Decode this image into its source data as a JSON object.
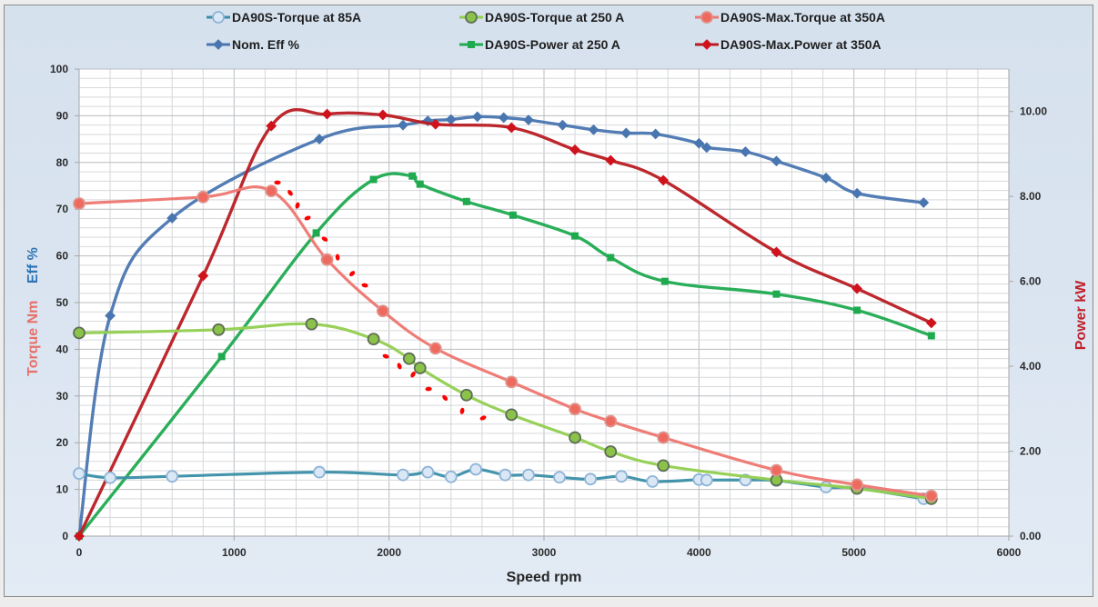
{
  "chart_data": {
    "type": "line",
    "title": "",
    "xlabel": "Speed rpm",
    "ylabel_left_parts": [
      {
        "text": "Torque Nm",
        "color": "#e8706a"
      },
      {
        "text": "Eff %",
        "color": "#2e75b6"
      }
    ],
    "ylabel_right": {
      "text": "Power kW",
      "color": "#c0202a"
    },
    "xlim": [
      0,
      6000
    ],
    "ylim_left": [
      0,
      100
    ],
    "ylim_right": [
      0,
      11
    ],
    "x_ticks": [
      0,
      1000,
      2000,
      3000,
      4000,
      5000,
      6000
    ],
    "x_tick_labels": [
      "0",
      "1000",
      "2000",
      "3000",
      "4000",
      "5000",
      "6000"
    ],
    "y_left_ticks": [
      0,
      10,
      20,
      30,
      40,
      50,
      60,
      70,
      80,
      90,
      100
    ],
    "y_left_tick_labels": [
      "0",
      "10",
      "20",
      "30",
      "40",
      "50",
      "60",
      "70",
      "80",
      "90",
      "100"
    ],
    "y_right_ticks": [
      0,
      2,
      4,
      6,
      8,
      10
    ],
    "y_right_tick_labels": [
      "0.00",
      "2.00",
      "4.00",
      "6.00",
      "8.00",
      "10.00"
    ],
    "grid": {
      "x_minor_step": 200,
      "y_minor_step": 2,
      "on": true
    },
    "legend_position": "top",
    "series": [
      {
        "name": "DA90S-Torque at 85A",
        "axis": "left",
        "marker": "circle-open",
        "line_color": "#3a8fa8",
        "marker_fill": "#dae8f6",
        "marker_edge": "#8fb4d6",
        "x": [
          0,
          200,
          600,
          1550,
          2090,
          2250,
          2400,
          2560,
          2750,
          2900,
          3100,
          3300,
          3500,
          3700,
          4000,
          4050,
          4300,
          4500,
          4820,
          5020,
          5450
        ],
        "y": [
          13.4,
          12.5,
          12.8,
          13.7,
          13.1,
          13.7,
          12.7,
          14.3,
          13.1,
          13.1,
          12.6,
          12.2,
          12.8,
          11.7,
          12.1,
          12.0,
          12.0,
          11.9,
          10.5,
          10.3,
          8.0
        ]
      },
      {
        "name": "DA90S-Torque at 250 A",
        "axis": "left",
        "marker": "circle",
        "line_color": "#92cf50",
        "marker_fill": "#8bc34a",
        "marker_edge": "#5f6e57",
        "x": [
          0,
          900,
          1500,
          1900,
          2130,
          2200,
          2500,
          2790,
          3200,
          3430,
          3770,
          4500,
          5020,
          5500
        ],
        "y": [
          43.5,
          44.2,
          45.4,
          42.2,
          38.0,
          36.0,
          30.2,
          26.0,
          21.1,
          18.1,
          15.1,
          12.0,
          10.2,
          8.0
        ]
      },
      {
        "name": "DA90S-Max.Torque at 350A",
        "axis": "left",
        "marker": "circle",
        "line_color": "#ee7670",
        "marker_fill": "#ee6a5e",
        "marker_edge": "#e0938c",
        "x": [
          0,
          800,
          1240,
          1600,
          1960,
          2300,
          2790,
          3200,
          3430,
          3770,
          4500,
          5020,
          5500
        ],
        "y": [
          71.2,
          72.6,
          73.9,
          59.2,
          48.2,
          40.2,
          33.0,
          27.2,
          24.6,
          21.1,
          14.1,
          11.0,
          8.6
        ]
      },
      {
        "name": "Nom. Eff %",
        "axis": "left",
        "marker": "diamond",
        "line_color": "#4a76b0",
        "marker_fill": "#4a76b0",
        "marker_edge": "#4a76b0",
        "x": [
          0,
          200,
          600,
          1550,
          2090,
          2250,
          2400,
          2570,
          2740,
          2900,
          3120,
          3320,
          3530,
          3720,
          4000,
          4050,
          4300,
          4500,
          4820,
          5020,
          5450
        ],
        "y": [
          0,
          47.2,
          68.1,
          85.0,
          88.0,
          88.9,
          89.2,
          89.8,
          89.6,
          89.1,
          88.0,
          87.0,
          86.3,
          86.1,
          84.1,
          83.2,
          82.3,
          80.3,
          76.7,
          73.4,
          71.4
        ]
      },
      {
        "name": "DA90S-Power at 250 A",
        "axis": "right",
        "marker": "square",
        "line_color": "#1faa50",
        "marker_fill": "#1faa50",
        "marker_edge": "#1faa50",
        "x": [
          0,
          920,
          1530,
          1900,
          2150,
          2200,
          2500,
          2800,
          3200,
          3430,
          3780,
          4500,
          5020,
          5500
        ],
        "y": [
          0,
          4.23,
          7.14,
          8.4,
          8.48,
          8.29,
          7.88,
          7.56,
          7.07,
          6.56,
          6.0,
          5.7,
          5.32,
          4.72
        ]
      },
      {
        "name": "DA90S-Max.Power at 350A",
        "axis": "right",
        "marker": "diamond",
        "line_color": "#b81c22",
        "marker_fill": "#d0121c",
        "marker_edge": "#d0121c",
        "x": [
          0,
          800,
          1240,
          1600,
          1960,
          2300,
          2790,
          3200,
          3430,
          3770,
          4500,
          5020,
          5500
        ],
        "y": [
          0,
          6.13,
          9.66,
          9.94,
          9.92,
          9.7,
          9.62,
          9.1,
          8.85,
          8.38,
          6.69,
          5.83,
          5.02
        ]
      }
    ],
    "annotations": [
      {
        "type": "hand-drawn-dotted-curve",
        "color": "#ff0000",
        "axis": "left",
        "x": [
          1280,
          1362,
          1409,
          1474,
          1585,
          1668,
          1762,
          1844
        ],
        "y": [
          75.7,
          73.5,
          70.8,
          68.1,
          63.6,
          59.7,
          56.2,
          53.7
        ]
      },
      {
        "type": "hand-drawn-dotted-curve",
        "color": "#ff0000",
        "axis": "left",
        "x": [
          1979,
          2067,
          2155,
          2255,
          2361,
          2472,
          2607
        ],
        "y": [
          38.5,
          36.4,
          34.6,
          31.5,
          29.6,
          26.8,
          25.3
        ]
      }
    ]
  }
}
